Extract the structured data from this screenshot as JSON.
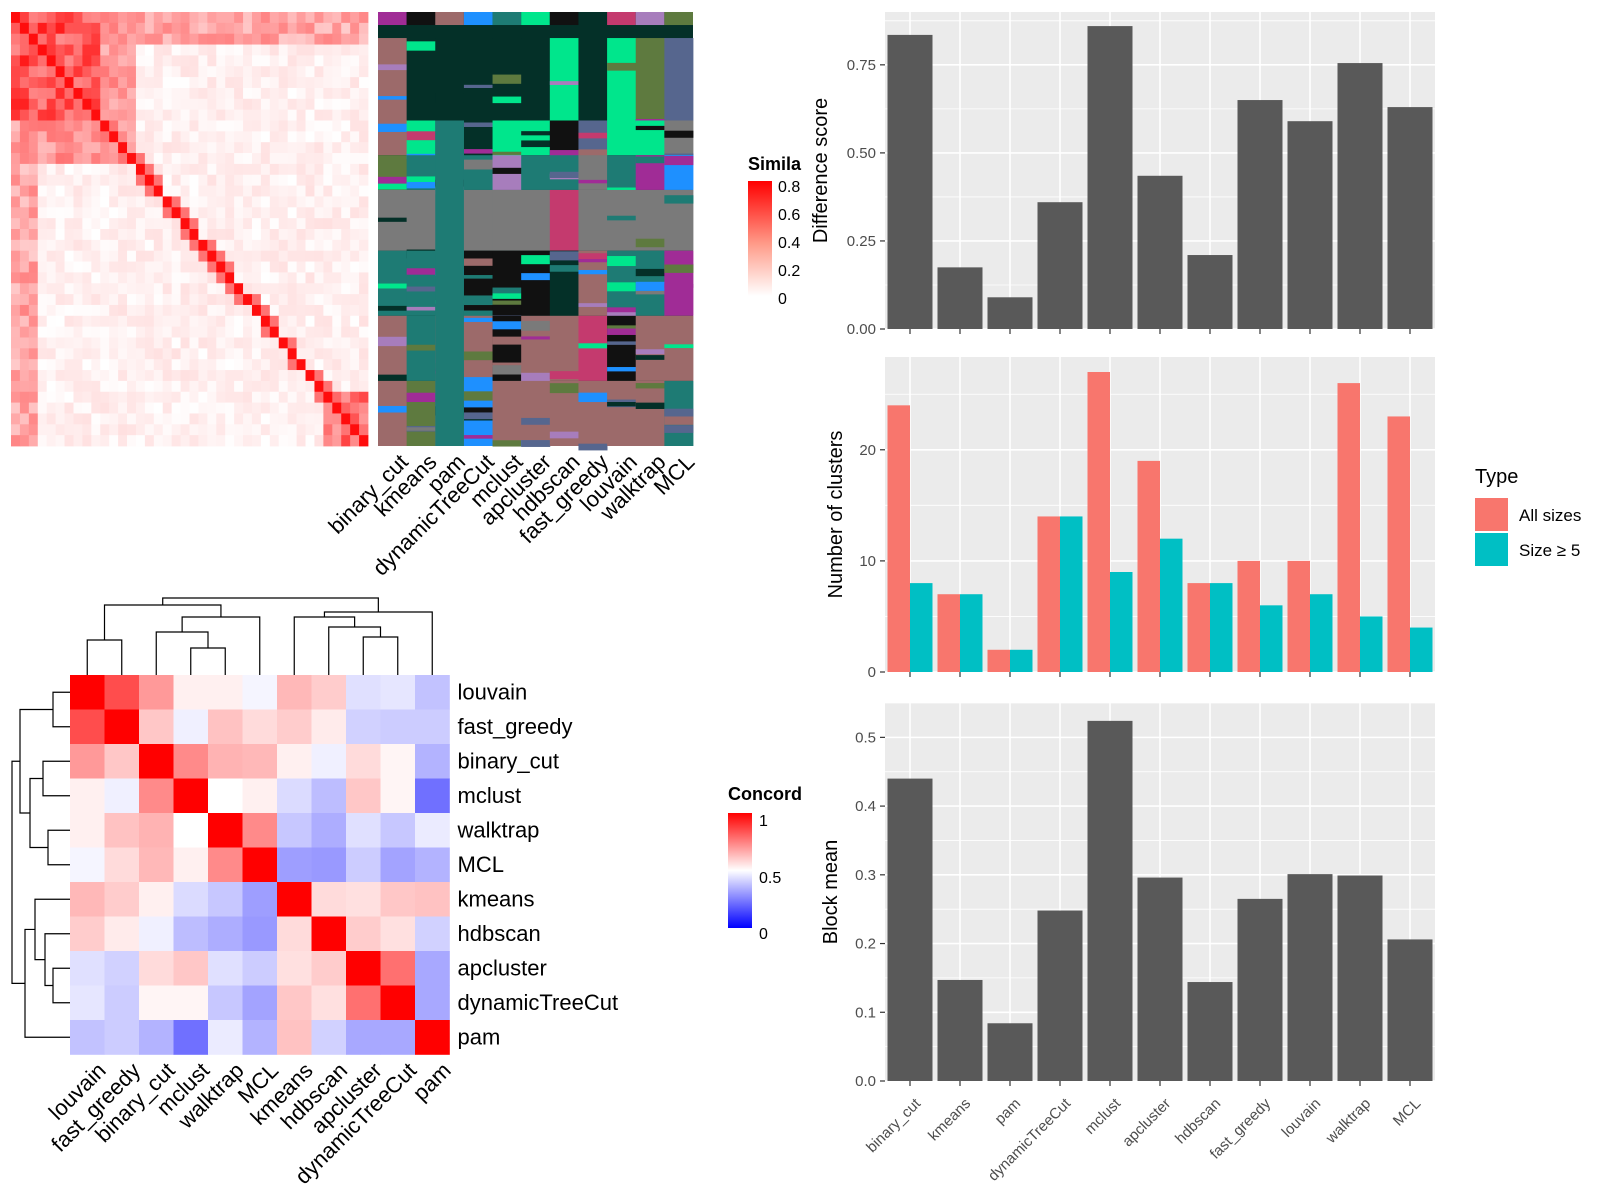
{
  "colors": {
    "panel_bg": "#EBEBEB",
    "grid": "#FFFFFF",
    "bar_dark": "#595959",
    "all_sizes": "#F8766D",
    "size_ge5": "#00BFC4",
    "heat_high": "#FF0000",
    "heat_mid": "#FFFFFF",
    "heat_low": "#0000FF",
    "label_dark": "#222222",
    "tick_gray": "#4D4D4D"
  },
  "similarity_heatmap": {
    "legend_title": "Simila",
    "legend_ticks": [
      "0.8",
      "0.6",
      "0.4",
      "0.2",
      "0"
    ]
  },
  "cluster_assignment": {
    "methods": [
      "binary_cut",
      "kmeans",
      "pam",
      "dynamicTreeCut",
      "mclust",
      "apcluster",
      "hdbscan",
      "fast_greedy",
      "louvain",
      "walktrap",
      "MCL"
    ]
  },
  "concordance_heatmap": {
    "legend_title": "Concord",
    "legend_ticks": [
      "1",
      "0.5",
      "0"
    ],
    "order": [
      "louvain",
      "fast_greedy",
      "binary_cut",
      "mclust",
      "walktrap",
      "MCL",
      "kmeans",
      "hdbscan",
      "apcluster",
      "dynamicTreeCut",
      "pam"
    ],
    "matrix": [
      [
        1.0,
        0.85,
        0.7,
        0.53,
        0.53,
        0.48,
        0.64,
        0.6,
        0.44,
        0.45,
        0.38
      ],
      [
        0.85,
        1.0,
        0.61,
        0.47,
        0.62,
        0.57,
        0.6,
        0.54,
        0.41,
        0.4,
        0.4
      ],
      [
        0.7,
        0.61,
        1.0,
        0.73,
        0.65,
        0.64,
        0.53,
        0.47,
        0.57,
        0.52,
        0.35
      ],
      [
        0.53,
        0.47,
        0.73,
        1.0,
        0.5,
        0.53,
        0.43,
        0.37,
        0.61,
        0.52,
        0.22
      ],
      [
        0.53,
        0.62,
        0.65,
        0.5,
        1.0,
        0.73,
        0.39,
        0.34,
        0.44,
        0.39,
        0.46
      ],
      [
        0.48,
        0.57,
        0.64,
        0.53,
        0.73,
        1.0,
        0.31,
        0.3,
        0.4,
        0.32,
        0.35
      ],
      [
        0.64,
        0.6,
        0.53,
        0.43,
        0.39,
        0.31,
        1.0,
        0.57,
        0.56,
        0.61,
        0.62
      ],
      [
        0.6,
        0.54,
        0.47,
        0.37,
        0.34,
        0.3,
        0.57,
        1.0,
        0.6,
        0.56,
        0.41
      ],
      [
        0.44,
        0.41,
        0.57,
        0.61,
        0.44,
        0.4,
        0.56,
        0.6,
        1.0,
        0.78,
        0.33
      ],
      [
        0.45,
        0.4,
        0.52,
        0.52,
        0.39,
        0.32,
        0.61,
        0.56,
        0.78,
        1.0,
        0.33
      ],
      [
        0.38,
        0.4,
        0.35,
        0.22,
        0.46,
        0.35,
        0.62,
        0.41,
        0.33,
        0.33,
        1.0
      ]
    ]
  },
  "chart_data": [
    {
      "type": "bar",
      "ylabel": "Difference score",
      "categories": [
        "binary_cut",
        "kmeans",
        "pam",
        "dynamicTreeCut",
        "mclust",
        "apcluster",
        "hdbscan",
        "fast_greedy",
        "louvain",
        "walktrap",
        "MCL"
      ],
      "values": [
        0.835,
        0.175,
        0.09,
        0.36,
        0.86,
        0.435,
        0.21,
        0.65,
        0.59,
        0.755,
        0.63
      ],
      "ylim": [
        0,
        0.9
      ],
      "yticks": [
        "0.00",
        "0.25",
        "0.50",
        "0.75"
      ],
      "ytick_values": [
        0,
        0.25,
        0.5,
        0.75
      ]
    },
    {
      "type": "bar",
      "ylabel": "Number of clusters",
      "categories": [
        "binary_cut",
        "kmeans",
        "pam",
        "dynamicTreeCut",
        "mclust",
        "apcluster",
        "hdbscan",
        "fast_greedy",
        "louvain",
        "walktrap",
        "MCL"
      ],
      "series": [
        {
          "name": "All sizes",
          "values": [
            24,
            7,
            2,
            14,
            27,
            19,
            8,
            10,
            10,
            26,
            23
          ]
        },
        {
          "name": "Size ≥ 5",
          "values": [
            8,
            7,
            2,
            14,
            9,
            12,
            8,
            6,
            7,
            5,
            4
          ]
        }
      ],
      "legend_title": "Type",
      "legend_position": "right",
      "ylim": [
        0,
        28.35
      ],
      "yticks": [
        "0",
        "10",
        "20"
      ],
      "ytick_values": [
        0,
        10,
        20
      ]
    },
    {
      "type": "bar",
      "ylabel": "Block mean",
      "categories": [
        "binary_cut",
        "kmeans",
        "pam",
        "dynamicTreeCut",
        "mclust",
        "apcluster",
        "hdbscan",
        "fast_greedy",
        "louvain",
        "walktrap",
        "MCL"
      ],
      "values": [
        0.44,
        0.147,
        0.084,
        0.248,
        0.524,
        0.296,
        0.144,
        0.265,
        0.301,
        0.299,
        0.206
      ],
      "ylim": [
        0,
        0.55
      ],
      "yticks": [
        "0.0",
        "0.1",
        "0.2",
        "0.3",
        "0.4",
        "0.5"
      ],
      "ytick_values": [
        0,
        0.1,
        0.2,
        0.3,
        0.4,
        0.5
      ]
    }
  ]
}
